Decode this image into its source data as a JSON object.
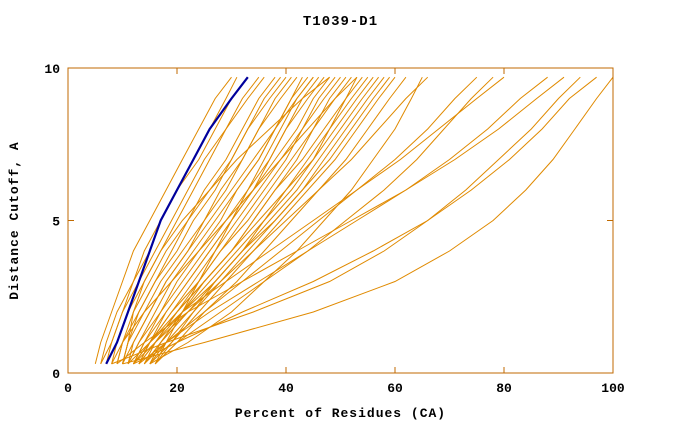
{
  "chart_data": {
    "type": "line",
    "title": "T1039-D1",
    "xlabel": "Percent of Residues (CA)",
    "ylabel": "Distance Cutoff, A",
    "xlim": [
      0,
      100
    ],
    "ylim": [
      0,
      10
    ],
    "x_ticks": [
      0,
      20,
      40,
      60,
      80,
      100
    ],
    "y_ticks": [
      0,
      5,
      10
    ],
    "grid": false,
    "legend": "none",
    "frame_color": "#c06a00",
    "series_color": "#e08a00",
    "highlight_color": "#00009c",
    "text_color": "#000000",
    "y_nodes": [
      0.3,
      1,
      2,
      3,
      4,
      5,
      6,
      7,
      8,
      9,
      9.7
    ],
    "highlight_series": {
      "x": [
        7,
        9,
        11,
        13,
        15,
        17,
        20,
        23,
        26,
        30,
        33
      ]
    },
    "series": [
      {
        "x": [
          8,
          9,
          11,
          14,
          17,
          20,
          23,
          26,
          29,
          33,
          36
        ]
      },
      {
        "x": [
          9,
          10,
          13,
          16,
          19,
          22,
          26,
          30,
          33,
          37,
          40
        ]
      },
      {
        "x": [
          10,
          11,
          14,
          17,
          21,
          25,
          28,
          32,
          35,
          39,
          42
        ]
      },
      {
        "x": [
          10,
          12,
          15,
          18,
          22,
          26,
          30,
          34,
          38,
          42,
          45
        ]
      },
      {
        "x": [
          11,
          13,
          16,
          19,
          23,
          27,
          31,
          35,
          38,
          41,
          44
        ]
      },
      {
        "x": [
          11,
          13,
          17,
          21,
          25,
          29,
          33,
          37,
          40,
          44,
          47
        ]
      },
      {
        "x": [
          12,
          14,
          18,
          22,
          26,
          30,
          34,
          38,
          42,
          45,
          48
        ]
      },
      {
        "x": [
          12,
          15,
          19,
          23,
          27,
          31,
          35,
          39,
          43,
          47,
          50
        ]
      },
      {
        "x": [
          13,
          15,
          19,
          24,
          28,
          33,
          37,
          41,
          45,
          49,
          52
        ]
      },
      {
        "x": [
          13,
          16,
          20,
          25,
          30,
          34,
          38,
          43,
          47,
          51,
          54
        ]
      },
      {
        "x": [
          14,
          17,
          21,
          26,
          31,
          36,
          40,
          44,
          48,
          52,
          55
        ]
      },
      {
        "x": [
          14,
          17,
          22,
          27,
          32,
          37,
          42,
          46,
          50,
          54,
          57
        ]
      },
      {
        "x": [
          15,
          18,
          23,
          28,
          33,
          38,
          43,
          47,
          51,
          55,
          58
        ]
      },
      {
        "x": [
          15,
          19,
          24,
          29,
          34,
          39,
          44,
          49,
          53,
          57,
          60
        ]
      },
      {
        "x": [
          16,
          20,
          25,
          31,
          36,
          41,
          46,
          51,
          55,
          59,
          62
        ]
      },
      {
        "x": [
          9,
          10,
          12,
          15,
          18,
          22,
          25,
          29,
          32,
          35,
          38
        ]
      },
      {
        "x": [
          10,
          11,
          13,
          16,
          20,
          23,
          27,
          30,
          33,
          36,
          39
        ]
      },
      {
        "x": [
          11,
          12,
          15,
          18,
          22,
          25,
          29,
          32,
          35,
          38,
          41
        ]
      },
      {
        "x": [
          12,
          14,
          17,
          20,
          24,
          28,
          31,
          35,
          38,
          41,
          43
        ]
      },
      {
        "x": [
          13,
          15,
          18,
          22,
          26,
          30,
          34,
          37,
          40,
          43,
          46
        ]
      },
      {
        "x": [
          14,
          16,
          20,
          24,
          28,
          32,
          36,
          40,
          43,
          46,
          49
        ]
      },
      {
        "x": [
          15,
          17,
          21,
          25,
          30,
          34,
          38,
          42,
          45,
          48,
          51
        ]
      },
      {
        "x": [
          16,
          19,
          23,
          27,
          32,
          36,
          41,
          45,
          48,
          51,
          53
        ]
      },
      {
        "x": [
          12,
          15,
          20,
          25,
          30,
          35,
          40,
          45,
          49,
          53,
          56
        ]
      },
      {
        "x": [
          13,
          16,
          21,
          27,
          32,
          38,
          43,
          48,
          52,
          56,
          59
        ]
      },
      {
        "x": [
          5,
          6,
          8,
          10,
          12,
          15,
          18,
          21,
          24,
          27,
          30
        ]
      },
      {
        "x": [
          6,
          7,
          9,
          12,
          14,
          17,
          20,
          24,
          27,
          30,
          33
        ]
      },
      {
        "x": [
          6,
          8,
          10,
          13,
          16,
          19,
          22,
          25,
          29,
          32,
          35
        ]
      },
      {
        "x": [
          7,
          8,
          10,
          12,
          15,
          17,
          20,
          23,
          26,
          29,
          31
        ]
      },
      {
        "x": [
          12,
          16,
          22,
          28,
          34,
          40,
          46,
          52,
          57,
          62,
          66
        ]
      },
      {
        "x": [
          14,
          18,
          25,
          32,
          39,
          46,
          53,
          60,
          66,
          71,
          75
        ]
      },
      {
        "x": [
          16,
          20,
          28,
          36,
          44,
          51,
          58,
          64,
          69,
          74,
          78
        ]
      },
      {
        "x": [
          15,
          22,
          30,
          36,
          42,
          47,
          52,
          56,
          60,
          63,
          65
        ]
      },
      {
        "x": [
          10,
          25,
          45,
          60,
          70,
          78,
          84,
          89,
          93,
          97,
          100
        ]
      },
      {
        "x": [
          12,
          20,
          32,
          45,
          56,
          66,
          74,
          81,
          87,
          92,
          97
        ]
      },
      {
        "x": [
          9,
          14,
          22,
          32,
          42,
          52,
          62,
          71,
          79,
          86,
          91
        ]
      },
      {
        "x": [
          13,
          18,
          26,
          35,
          44,
          53,
          62,
          70,
          77,
          83,
          88
        ]
      },
      {
        "x": [
          11,
          15,
          21,
          29,
          37,
          45,
          53,
          61,
          68,
          75,
          80
        ]
      },
      {
        "x": [
          10,
          11,
          12,
          14,
          17,
          21,
          26,
          31,
          37,
          43,
          48
        ]
      },
      {
        "x": [
          16,
          18,
          21,
          24,
          27,
          30,
          33,
          36,
          39,
          42,
          45
        ]
      },
      {
        "x": [
          8,
          10,
          14,
          19,
          24,
          29,
          34,
          39,
          44,
          49,
          53
        ]
      },
      {
        "x": [
          8,
          18,
          34,
          48,
          58,
          66,
          73,
          79,
          85,
          90,
          94
        ]
      }
    ]
  }
}
